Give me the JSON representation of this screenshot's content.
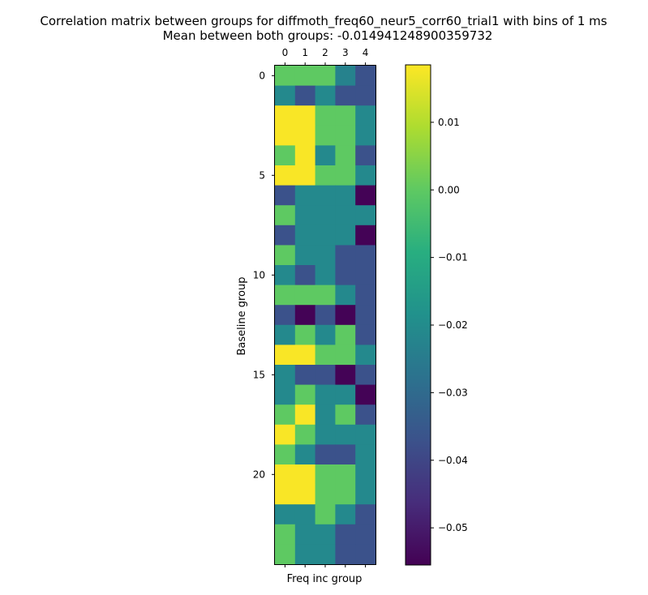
{
  "chart_data": {
    "type": "heatmap",
    "title_lines": [
      "Correlation matrix between groups for diffmoth_freq60_neur5_corr60_trial1 with bins of 1 ms",
      "Mean between both groups: -0.014941248900359732"
    ],
    "xlabel": "Freq inc group",
    "ylabel": "Baseline group",
    "x_tick_labels": [
      "0",
      "1",
      "2",
      "3",
      "4"
    ],
    "y_tick_labels": [
      "0",
      "5",
      "10",
      "15",
      "20"
    ],
    "y_tick_values": [
      0,
      5,
      10,
      15,
      20
    ],
    "rows": 25,
    "cols": 5,
    "colormap": "viridis",
    "vmin": -0.0555,
    "vmax": 0.0185,
    "values": [
      [
        0.0,
        0.0,
        0.0,
        -0.023,
        -0.037
      ],
      [
        -0.021,
        -0.037,
        -0.021,
        -0.037,
        -0.037
      ],
      [
        0.018,
        0.018,
        0.0,
        0.0,
        -0.021
      ],
      [
        0.018,
        0.018,
        0.0,
        0.0,
        -0.021
      ],
      [
        0.0,
        0.018,
        -0.021,
        0.0,
        -0.037
      ],
      [
        0.018,
        0.018,
        0.0,
        0.0,
        -0.021
      ],
      [
        -0.037,
        -0.021,
        -0.021,
        -0.021,
        -0.055
      ],
      [
        0.0,
        -0.021,
        -0.021,
        -0.021,
        -0.021
      ],
      [
        -0.037,
        -0.021,
        -0.021,
        -0.021,
        -0.055
      ],
      [
        0.0,
        -0.021,
        -0.021,
        -0.037,
        -0.037
      ],
      [
        -0.021,
        -0.037,
        -0.021,
        -0.037,
        -0.037
      ],
      [
        0.0,
        0.0,
        0.0,
        -0.021,
        -0.037
      ],
      [
        -0.037,
        -0.055,
        -0.037,
        -0.055,
        -0.037
      ],
      [
        -0.021,
        0.0,
        -0.021,
        0.0,
        -0.037
      ],
      [
        0.018,
        0.018,
        0.0,
        0.0,
        -0.021
      ],
      [
        -0.021,
        -0.037,
        -0.037,
        -0.055,
        -0.037
      ],
      [
        -0.021,
        0.0,
        -0.021,
        -0.021,
        -0.055
      ],
      [
        0.0,
        0.018,
        -0.021,
        0.0,
        -0.037
      ],
      [
        0.018,
        0.0,
        -0.021,
        -0.021,
        -0.021
      ],
      [
        0.0,
        -0.021,
        -0.037,
        -0.037,
        -0.021
      ],
      [
        0.018,
        0.018,
        0.0,
        0.0,
        -0.021
      ],
      [
        0.018,
        0.018,
        0.0,
        0.0,
        -0.021
      ],
      [
        -0.021,
        -0.021,
        0.0,
        -0.021,
        -0.037
      ],
      [
        0.0,
        -0.021,
        -0.021,
        -0.037,
        -0.037
      ],
      [
        0.0,
        -0.021,
        -0.021,
        -0.037,
        -0.037
      ]
    ],
    "colorbar": {
      "ticks": [
        0.01,
        0.0,
        -0.01,
        -0.02,
        -0.03,
        -0.04,
        -0.05
      ],
      "tick_labels": [
        "0.01",
        "0.00",
        "−0.01",
        "−0.02",
        "−0.03",
        "−0.04",
        "−0.05"
      ]
    }
  }
}
